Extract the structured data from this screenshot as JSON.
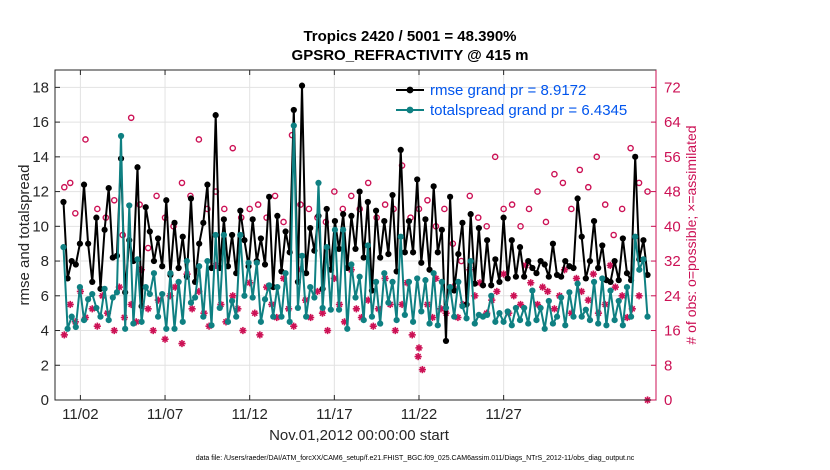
{
  "chart_data": {
    "type": "line",
    "title_line1": "Tropics 2420 / 5001 = 48.390%",
    "title_line2": "GPSRO_REFRACTIVITY @ 415 m",
    "xlabel": "Nov.01,2012 00:00:00 start",
    "ylabel": "rmse and totalspread",
    "y2label": "# of obs: o=possible; ×=assimilated",
    "footnote": "data file: /Users/raeder/DAI/ATM_forcXX/CAM6_setup/f.e21.FHIST_BGC.f09_025.CAM6assim.011/Diags_NTrS_2012-11/obs_diag_output.nc",
    "xlim": [
      0.5,
      36.0
    ],
    "ylim": [
      0,
      19
    ],
    "y2lim": [
      0,
      76
    ],
    "xticks": [
      2,
      7,
      12,
      17,
      22,
      27
    ],
    "xtick_labels": [
      "11/02",
      "11/07",
      "11/12",
      "11/17",
      "11/22",
      "11/27"
    ],
    "yticks": [
      0,
      2,
      4,
      6,
      8,
      10,
      12,
      14,
      16,
      18
    ],
    "y2ticks": [
      0,
      8,
      16,
      24,
      32,
      40,
      48,
      56,
      64,
      72
    ],
    "grid": true,
    "legend_position": "top-right",
    "colors": {
      "rmse": "#000000",
      "spread": "#0f8082",
      "obs": "#cc1155",
      "legend_text": "#0055ee"
    },
    "series": [
      {
        "name": "rmse grand pr = 8.9172",
        "values": [
          11.4,
          7.0,
          8.0,
          7.8,
          9.0,
          12.4,
          9.0,
          6.8,
          10.5,
          6.4,
          9.8,
          12.2,
          8.2,
          8.3,
          13.9,
          6.2,
          9.2,
          8.0,
          13.4,
          5.4,
          11.1,
          9.7,
          8.0,
          9.3,
          7.7,
          11.5,
          7.2,
          10.2,
          7.6,
          9.4,
          7.1,
          11.6,
          6.8,
          9.0,
          10.2,
          12.4,
          7.6,
          16.4,
          7.6,
          10.4,
          7.7,
          9.5,
          7.3,
          10.9,
          9.2,
          7.7,
          10.4,
          8.0,
          9.3,
          7.8,
          11.7,
          6.5,
          10.6,
          7.4,
          9.7,
          8.5,
          16.7,
          6.8,
          18.1,
          7.3,
          9.9,
          8.6,
          10.6,
          6.4,
          11.0,
          7.5,
          10.3,
          8.7,
          10.7,
          7.6,
          10.6,
          8.7,
          12.0,
          8.2,
          11.4,
          6.3,
          10.9,
          8.2,
          10.3,
          8.4,
          11.8,
          7.4,
          14.4,
          8.5,
          10.3,
          8.5,
          12.7,
          7.9,
          10.4,
          7.5,
          12.3,
          8.5,
          9.8,
          3.4,
          11.7,
          6.3,
          8.4,
          10.2,
          5.5,
          10.7,
          6.7,
          9.9,
          6.6,
          9.2,
          6.6,
          8.1,
          6.8,
          10.5,
          7.0,
          9.2,
          7.1,
          8.8,
          7.1,
          8.0,
          7.6,
          7.3,
          8.0,
          7.8,
          7.1,
          9.0,
          7.2,
          7.1,
          8.0,
          7.7,
          7.6,
          11.6,
          9.4,
          7.0,
          8.0,
          10.3,
          7.6,
          8.9,
          6.9,
          6.8,
          8.0,
          6.9,
          9.3,
          7.3,
          6.9,
          14.0,
          8.1,
          9.2,
          7.2
        ]
      },
      {
        "name": "totalspread grand pr = 6.4345",
        "values": [
          8.8,
          4.1,
          4.8,
          4.2,
          6.5,
          4.6,
          5.8,
          6.1,
          5.3,
          4.8,
          6.4,
          4.6,
          5.9,
          6.2,
          15.2,
          4.1,
          11.2,
          4.4,
          8.1,
          4.5,
          6.5,
          6.1,
          7.3,
          4.8,
          6.1,
          4.1,
          7.3,
          4.1,
          6.8,
          4.5,
          8.0,
          5.6,
          5.9,
          7.7,
          4.8,
          8.0,
          4.3,
          9.5,
          5.3,
          9.5,
          4.5,
          5.7,
          4.8,
          9.5,
          6.0,
          7.9,
          5.9,
          7.9,
          4.5,
          5.8,
          6.6,
          4.8,
          6.5,
          4.8,
          7.3,
          4.5,
          15.8,
          5.3,
          8.3,
          4.8,
          6.5,
          5.9,
          12.5,
          5.3,
          8.8,
          5.2,
          9.8,
          5.2,
          9.8,
          4.1,
          7.8,
          5.9,
          7.1,
          4.6,
          8.9,
          4.8,
          6.8,
          4.4,
          7.3,
          5.6,
          6.8,
          4.6,
          9.4,
          4.9,
          6.8,
          4.5,
          7.0,
          5.1,
          6.9,
          4.4,
          7.3,
          4.3,
          6.8,
          5.3,
          6.5,
          4.8,
          6.8,
          5.4,
          4.7,
          8.0,
          4.4,
          4.9,
          4.8,
          4.9,
          6.0,
          4.5,
          5.0,
          4.5,
          5.1,
          4.3,
          5.3,
          4.6,
          5.3,
          4.4,
          6.3,
          4.6,
          5.3,
          4.1,
          5.7,
          4.4,
          4.8,
          5.9,
          4.3,
          6.2,
          4.8,
          6.7,
          4.8,
          5.2,
          4.6,
          6.8,
          4.4,
          7.0,
          4.3,
          6.3,
          4.6,
          5.7,
          4.3,
          6.5,
          4.8,
          9.4,
          7.5,
          8.1,
          4.8
        ]
      },
      {
        "name": "obs possible (o)",
        "x": [
          1.05,
          1.4,
          1.7,
          2.3,
          3.0,
          3.5,
          4.0,
          4.5,
          5.0,
          5.5,
          6.0,
          6.5,
          7.0,
          7.5,
          8.0,
          8.5,
          9.0,
          9.5,
          10.0,
          10.5,
          11.0,
          11.5,
          12.0,
          12.5,
          13.0,
          13.5,
          14.0,
          14.5,
          15.0,
          15.5,
          16.0,
          16.5,
          17.0,
          17.5,
          18.0,
          18.5,
          19.0,
          19.5,
          20.0,
          20.5,
          21.0,
          21.5,
          22.0,
          22.5,
          23.0,
          23.5,
          24.0,
          24.5,
          25.0,
          25.5,
          26.0,
          26.5,
          27.0,
          27.5,
          28.0,
          28.5,
          29.0,
          29.5,
          30.0,
          30.5,
          31.0,
          31.5,
          32.0,
          32.5,
          33.0,
          33.5,
          34.0,
          34.5,
          35.0,
          35.5
        ],
        "values": [
          49,
          50,
          43,
          60,
          44,
          42,
          46,
          38,
          65,
          45,
          35,
          47,
          42,
          40,
          50,
          47,
          60,
          44,
          48,
          44,
          58,
          42,
          44,
          45,
          42,
          47,
          41,
          61,
          45,
          44,
          42,
          41,
          48,
          44,
          47,
          44,
          50,
          42,
          45,
          44,
          54,
          42,
          44,
          46,
          40,
          44,
          36,
          32,
          47,
          42,
          40,
          56,
          44,
          45,
          40,
          44,
          48,
          41,
          52,
          50,
          44,
          53,
          49,
          56,
          45,
          38,
          44,
          58,
          50,
          48
        ]
      },
      {
        "name": "obs assimilated (×)",
        "x": [
          1.05,
          1.4,
          1.7,
          2.0,
          2.3,
          2.7,
          3.0,
          3.3,
          3.6,
          4.0,
          4.3,
          4.6,
          5.0,
          5.3,
          5.6,
          6.0,
          6.3,
          6.6,
          7.0,
          7.3,
          7.6,
          8.0,
          8.3,
          8.6,
          9.0,
          9.3,
          9.6,
          10.0,
          10.3,
          10.6,
          11.0,
          11.3,
          11.6,
          12.0,
          12.3,
          12.6,
          13.0,
          13.3,
          13.6,
          14.0,
          14.3,
          14.6,
          15.0,
          15.3,
          15.6,
          16.0,
          16.3,
          16.6,
          17.0,
          17.3,
          17.6,
          18.0,
          18.3,
          18.6,
          19.0,
          19.3,
          19.6,
          20.0,
          20.3,
          20.6,
          21.0,
          21.3,
          21.6,
          21.95,
          22.0,
          22.2,
          22.5,
          22.8,
          23.0,
          23.3,
          23.6,
          24.0,
          24.3,
          24.6,
          25.0,
          25.3,
          25.6,
          26.0,
          26.3,
          26.6,
          27.0,
          27.3,
          27.6,
          28.0,
          28.3,
          28.6,
          29.0,
          29.3,
          29.6,
          30.0,
          30.3,
          30.6,
          31.0,
          31.3,
          31.6,
          32.0,
          32.3,
          32.6,
          33.0,
          33.3,
          33.6,
          34.0,
          34.3,
          34.6,
          35.0,
          35.5
        ],
        "values": [
          15,
          22,
          18,
          25,
          19,
          21,
          17,
          24,
          20,
          16,
          26,
          19,
          22,
          18,
          30,
          21,
          16,
          23,
          14,
          24,
          26,
          13,
          29,
          21,
          25,
          20,
          17,
          31,
          22,
          18,
          24,
          21,
          16,
          27,
          20,
          15,
          26,
          22,
          19,
          28,
          21,
          17,
          30,
          23,
          19,
          25,
          20,
          16,
          28,
          22,
          18,
          30,
          21,
          19,
          23,
          17,
          21,
          28,
          22,
          16,
          22,
          27,
          15,
          10,
          12,
          7,
          22,
          19,
          28,
          21,
          20,
          26,
          19,
          22,
          30,
          24,
          27,
          20,
          23,
          25,
          29,
          20,
          24,
          22,
          31,
          27,
          22,
          26,
          25,
          21,
          24,
          30,
          20,
          28,
          25,
          23,
          29,
          20,
          22,
          31,
          26,
          24,
          19,
          21,
          24,
          0
        ]
      }
    ]
  }
}
